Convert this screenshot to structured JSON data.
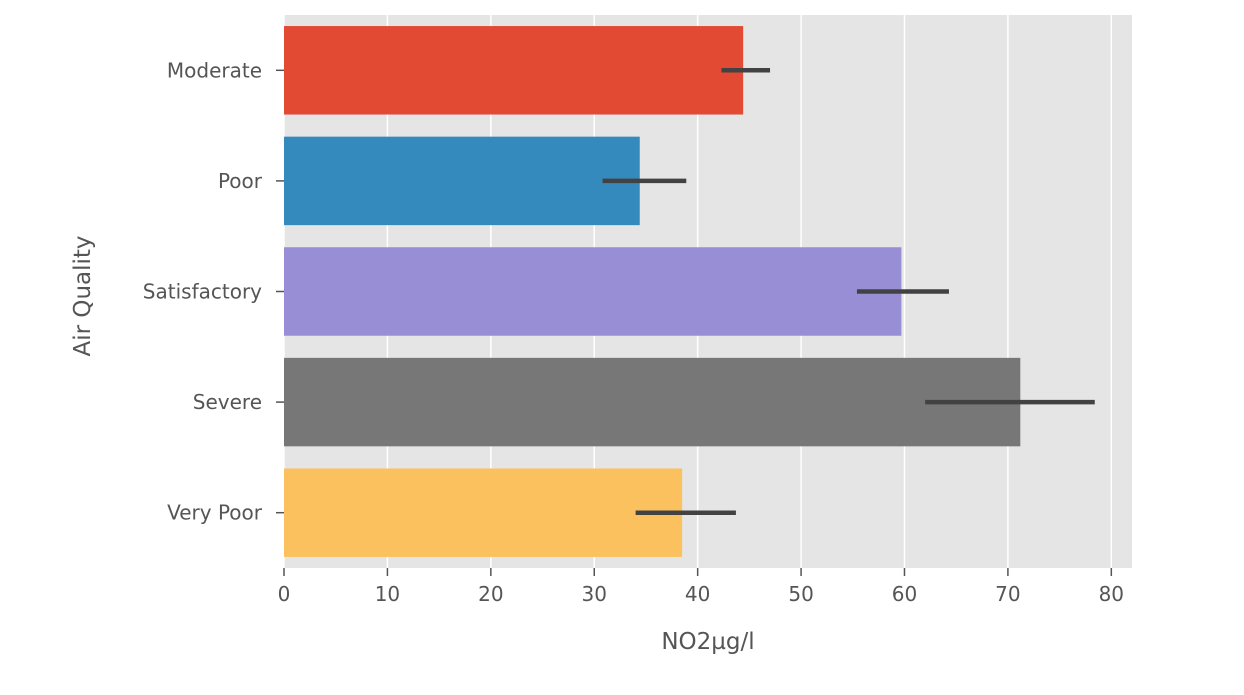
{
  "chart_data": {
    "type": "bar",
    "orientation": "horizontal",
    "xlabel": "NO2µg/l",
    "ylabel": "Air Quality",
    "xlim": [
      0,
      82
    ],
    "xticks": [
      "0",
      "10",
      "20",
      "30",
      "40",
      "50",
      "60",
      "70",
      "80"
    ],
    "xtick_values": [
      0,
      10,
      20,
      30,
      40,
      50,
      60,
      70,
      80
    ],
    "grid": true,
    "categories": [
      "Moderate",
      "Poor",
      "Satisfactory",
      "Severe",
      "Very Poor"
    ],
    "values": [
      44.4,
      34.4,
      59.7,
      71.2,
      38.5
    ],
    "error_low": [
      42.3,
      30.8,
      55.4,
      62.0,
      34.0
    ],
    "error_high": [
      47.0,
      38.9,
      64.3,
      78.4,
      43.7
    ],
    "colors": [
      "#E24A33",
      "#348ABD",
      "#988ED5",
      "#777777",
      "#FBC15E"
    ],
    "style": {
      "background": "#E5E5E5",
      "gridline": "#FFFFFF",
      "errorbar": "#424242",
      "text": "#555555"
    }
  }
}
